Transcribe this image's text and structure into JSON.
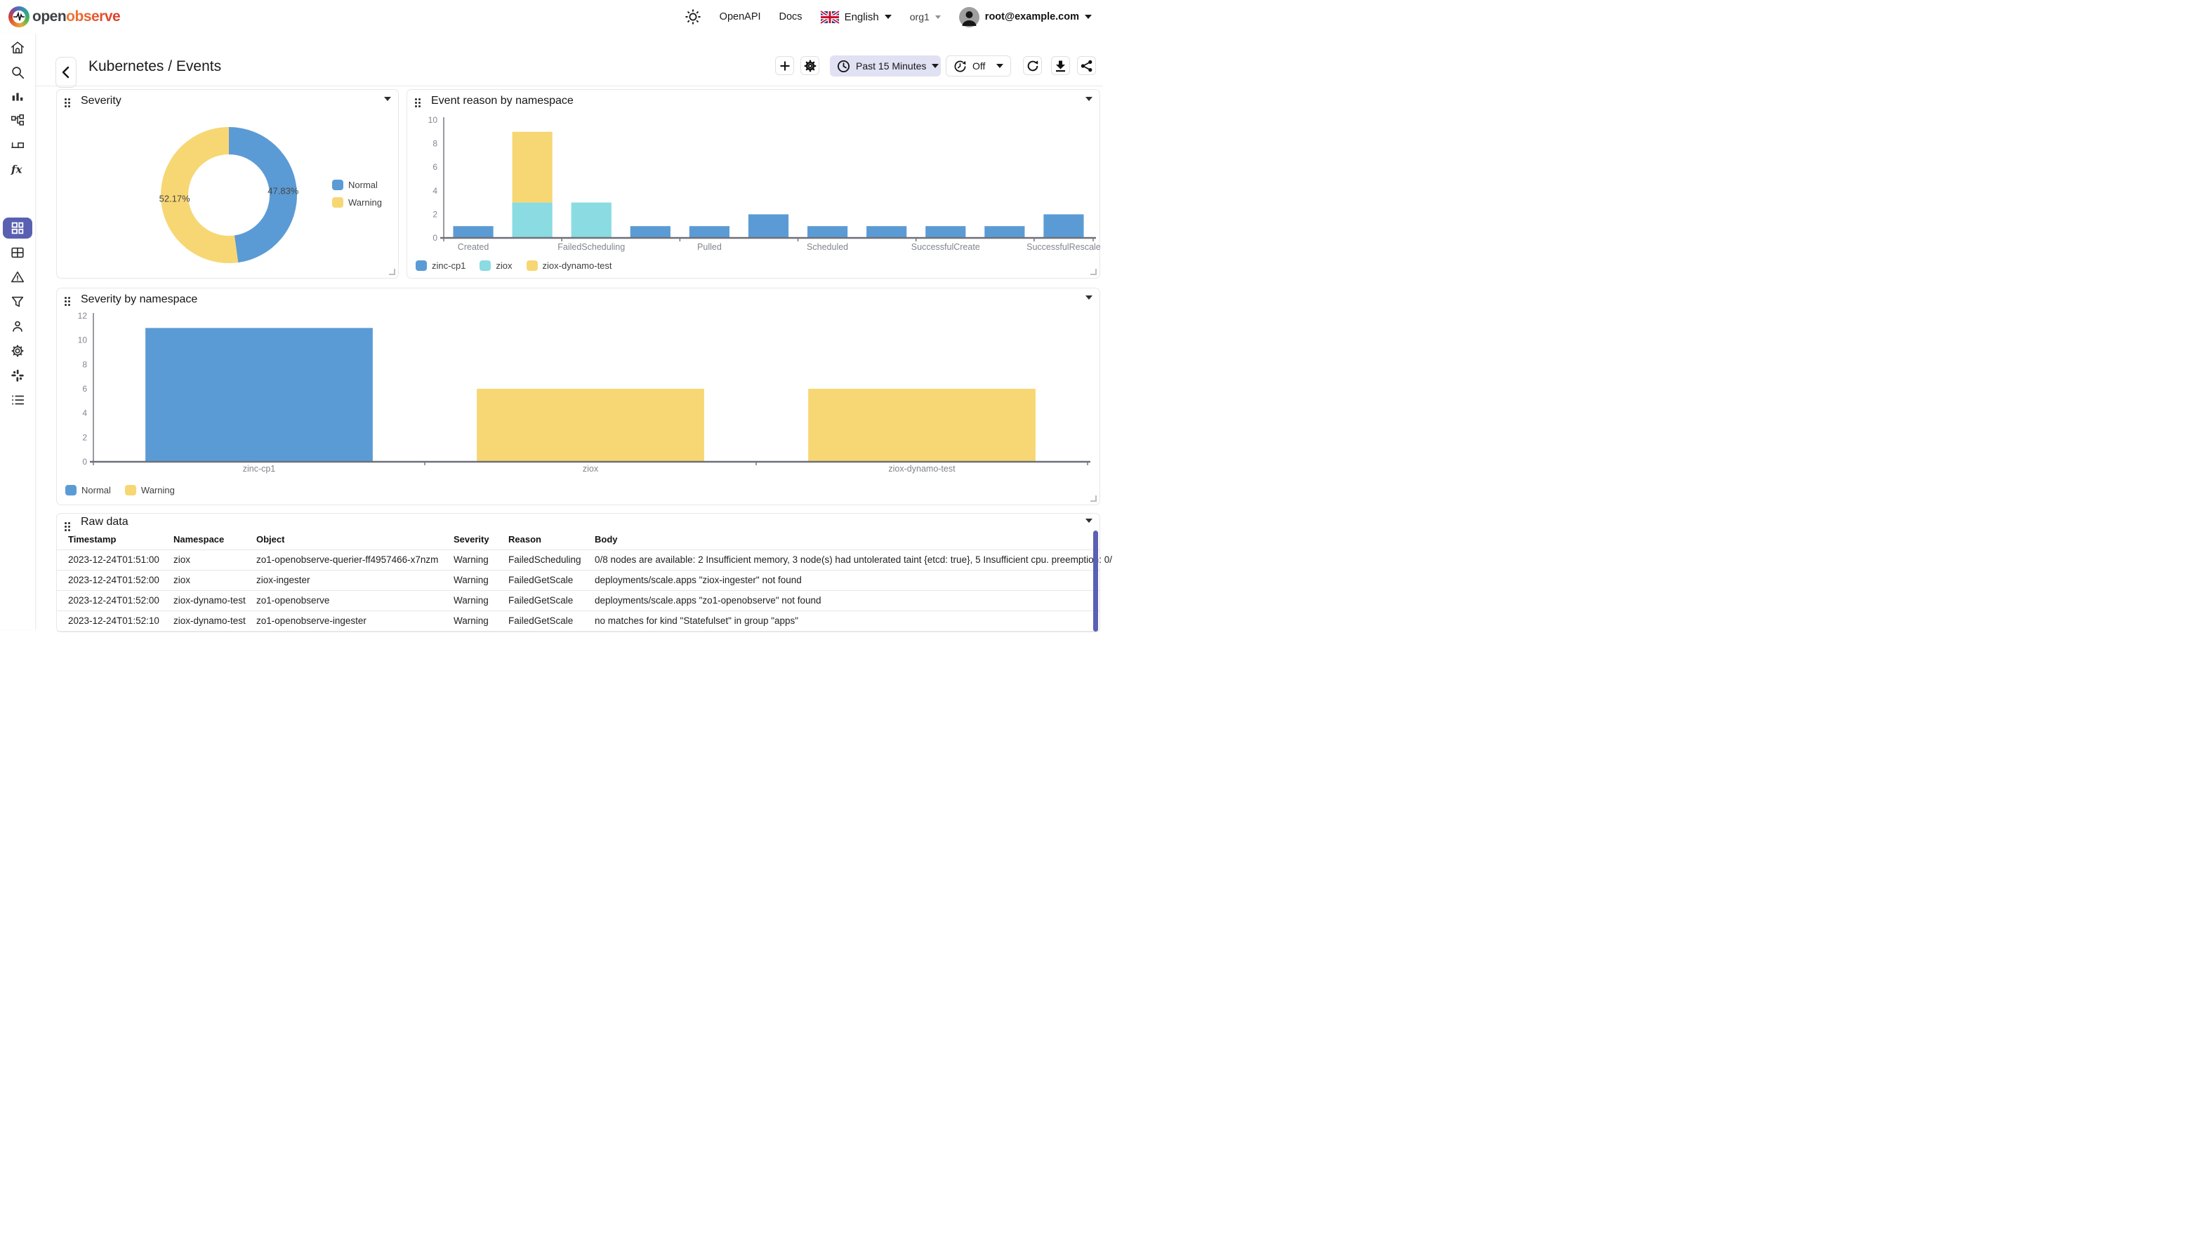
{
  "app": {
    "name_open": "open",
    "name_observe": "observe"
  },
  "header": {
    "nav": [
      {
        "label": "OpenAPI"
      },
      {
        "label": "Docs"
      }
    ],
    "language": "English",
    "org": "org1",
    "email": "root@example.com"
  },
  "sidebar": {
    "accent": "#5960B2",
    "active": "dashboards",
    "items": [
      "home",
      "search",
      "logs",
      "streams",
      "traces",
      "functions",
      "dashboards",
      "metrics",
      "alerts",
      "filters",
      "users",
      "settings",
      "slack",
      "about"
    ]
  },
  "toolbar": {
    "title": "Kubernetes / Events",
    "time_range": "Past 15 Minutes",
    "auto_refresh": "Off"
  },
  "colors": {
    "normal_blue": "#5B9BD5",
    "warning_yellow": "#F7D774",
    "ziox_teal": "#8ADBE2",
    "accent_indigo": "#5960B2"
  },
  "chart_data": [
    {
      "id": "severity",
      "type": "pie",
      "title": "Severity",
      "donut": true,
      "legend_position": "right",
      "slices": [
        {
          "name": "Normal",
          "percent": 47.83,
          "label": "47.83%",
          "color": "#5B9BD5"
        },
        {
          "name": "Warning",
          "percent": 52.17,
          "label": "52.17%",
          "color": "#F7D774"
        }
      ]
    },
    {
      "id": "event_reason",
      "type": "bar",
      "stacked": true,
      "title": "Event reason by namespace",
      "categories": [
        "Created",
        "",
        "FailedScheduling",
        "",
        "Pulled",
        "",
        "Scheduled",
        "",
        "SuccessfulCreate",
        "",
        "SuccessfulRescale"
      ],
      "visible_tick_labels": [
        "Created",
        "FailedScheduling",
        "Pulled",
        "Scheduled",
        "SuccessfulCreate",
        "SuccessfulRescale"
      ],
      "series": [
        {
          "name": "zinc-cp1",
          "color": "#5B9BD5",
          "values": [
            1,
            0,
            0,
            1,
            1,
            2,
            1,
            1,
            1,
            1,
            2
          ]
        },
        {
          "name": "ziox",
          "color": "#8ADBE2",
          "values": [
            0,
            3,
            3,
            0,
            0,
            0,
            0,
            0,
            0,
            0,
            0
          ]
        },
        {
          "name": "ziox-dynamo-test",
          "color": "#F7D774",
          "values": [
            0,
            6,
            0,
            0,
            0,
            0,
            0,
            0,
            0,
            0,
            0
          ]
        }
      ],
      "ylim": [
        0,
        10
      ],
      "yticks": [
        0,
        2,
        4,
        6,
        8,
        10
      ],
      "grid": false,
      "legend_position": "bottom-left"
    },
    {
      "id": "severity_ns",
      "type": "bar",
      "stacked": true,
      "title": "Severity by namespace",
      "categories": [
        "zinc-cp1",
        "ziox",
        "ziox-dynamo-test"
      ],
      "series": [
        {
          "name": "Normal",
          "color": "#5B9BD5",
          "values": [
            11,
            0,
            0
          ]
        },
        {
          "name": "Warning",
          "color": "#F7D774",
          "values": [
            0,
            6,
            6
          ]
        }
      ],
      "ylim": [
        0,
        12
      ],
      "yticks": [
        0,
        2,
        4,
        6,
        8,
        10,
        12
      ],
      "grid": false,
      "legend_position": "bottom-left"
    },
    {
      "id": "raw",
      "type": "table",
      "title": "Raw data",
      "columns": [
        "Timestamp",
        "Namespace",
        "Object",
        "Severity",
        "Reason",
        "Body"
      ],
      "rows": [
        {
          "timestamp": "2023-12-24T01:51:00",
          "namespace": "ziox",
          "object": "zo1-openobserve-querier-ff4957466-x7nzm",
          "severity": "Warning",
          "reason": "FailedScheduling",
          "body": "0/8 nodes are available: 2 Insufficient memory, 3 node(s) had untolerated taint {etcd: true}, 5 Insufficient cpu. preemption: 0/"
        },
        {
          "timestamp": "2023-12-24T01:52:00",
          "namespace": "ziox",
          "object": "ziox-ingester",
          "severity": "Warning",
          "reason": "FailedGetScale",
          "body": "deployments/scale.apps \"ziox-ingester\" not found"
        },
        {
          "timestamp": "2023-12-24T01:52:00",
          "namespace": "ziox-dynamo-test",
          "object": "zo1-openobserve",
          "severity": "Warning",
          "reason": "FailedGetScale",
          "body": "deployments/scale.apps \"zo1-openobserve\" not found"
        },
        {
          "timestamp": "2023-12-24T01:52:10",
          "namespace": "ziox-dynamo-test",
          "object": "zo1-openobserve-ingester",
          "severity": "Warning",
          "reason": "FailedGetScale",
          "body": "no matches for kind \"Statefulset\" in group \"apps\""
        }
      ]
    }
  ]
}
